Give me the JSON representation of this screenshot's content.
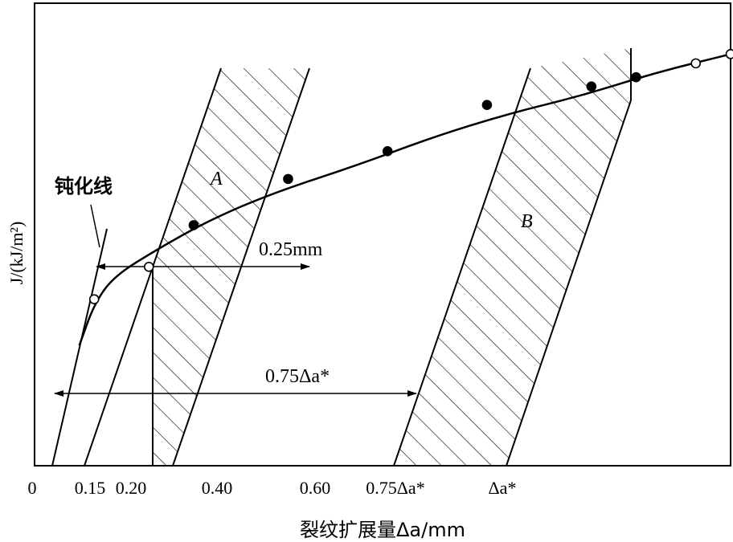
{
  "chart_data": {
    "type": "scatter",
    "title": "",
    "ylabel": "J/(kJ/m²)",
    "xlabel": "裂纹扩展量Δa/mm",
    "x_ticks": [
      "0",
      "0.15",
      "0.20",
      "0.40",
      "0.60",
      "0.75Δa*",
      "Δa*"
    ],
    "x_tick_values": [
      0,
      0.15,
      0.2,
      0.4,
      0.6,
      0.75,
      1.0
    ],
    "xlim": [
      0,
      1.4
    ],
    "ylim": [
      0,
      1
    ],
    "grid": false,
    "blunting_label": "钝化线",
    "regions": [
      {
        "label": "A",
        "x_start": 0.25,
        "x_end": 0.5
      },
      {
        "label": "B",
        "x_start": 0.75,
        "x_end": 1.0
      }
    ],
    "annotations": {
      "offset_025": "0.25mm",
      "offset_075": "0.75Δa*"
    },
    "series": [
      {
        "marker": "filled",
        "points": [
          [
            0.32,
            0.52
          ],
          [
            0.51,
            0.62
          ],
          [
            0.71,
            0.68
          ],
          [
            0.91,
            0.78
          ],
          [
            1.12,
            0.82
          ],
          [
            1.21,
            0.84
          ]
        ]
      },
      {
        "marker": "open",
        "points": [
          [
            0.12,
            0.36
          ],
          [
            0.23,
            0.43
          ],
          [
            1.33,
            0.87
          ],
          [
            1.4,
            0.89
          ]
        ]
      }
    ],
    "curve": [
      [
        0.09,
        0.26
      ],
      [
        0.12,
        0.35
      ],
      [
        0.16,
        0.41
      ],
      [
        0.25,
        0.47
      ],
      [
        0.35,
        0.53
      ],
      [
        0.48,
        0.59
      ],
      [
        0.65,
        0.65
      ],
      [
        0.8,
        0.71
      ],
      [
        0.95,
        0.76
      ],
      [
        1.1,
        0.8
      ],
      [
        1.25,
        0.85
      ],
      [
        1.4,
        0.89
      ]
    ]
  },
  "colors": {
    "ink": "#000000",
    "background": "#ffffff"
  }
}
